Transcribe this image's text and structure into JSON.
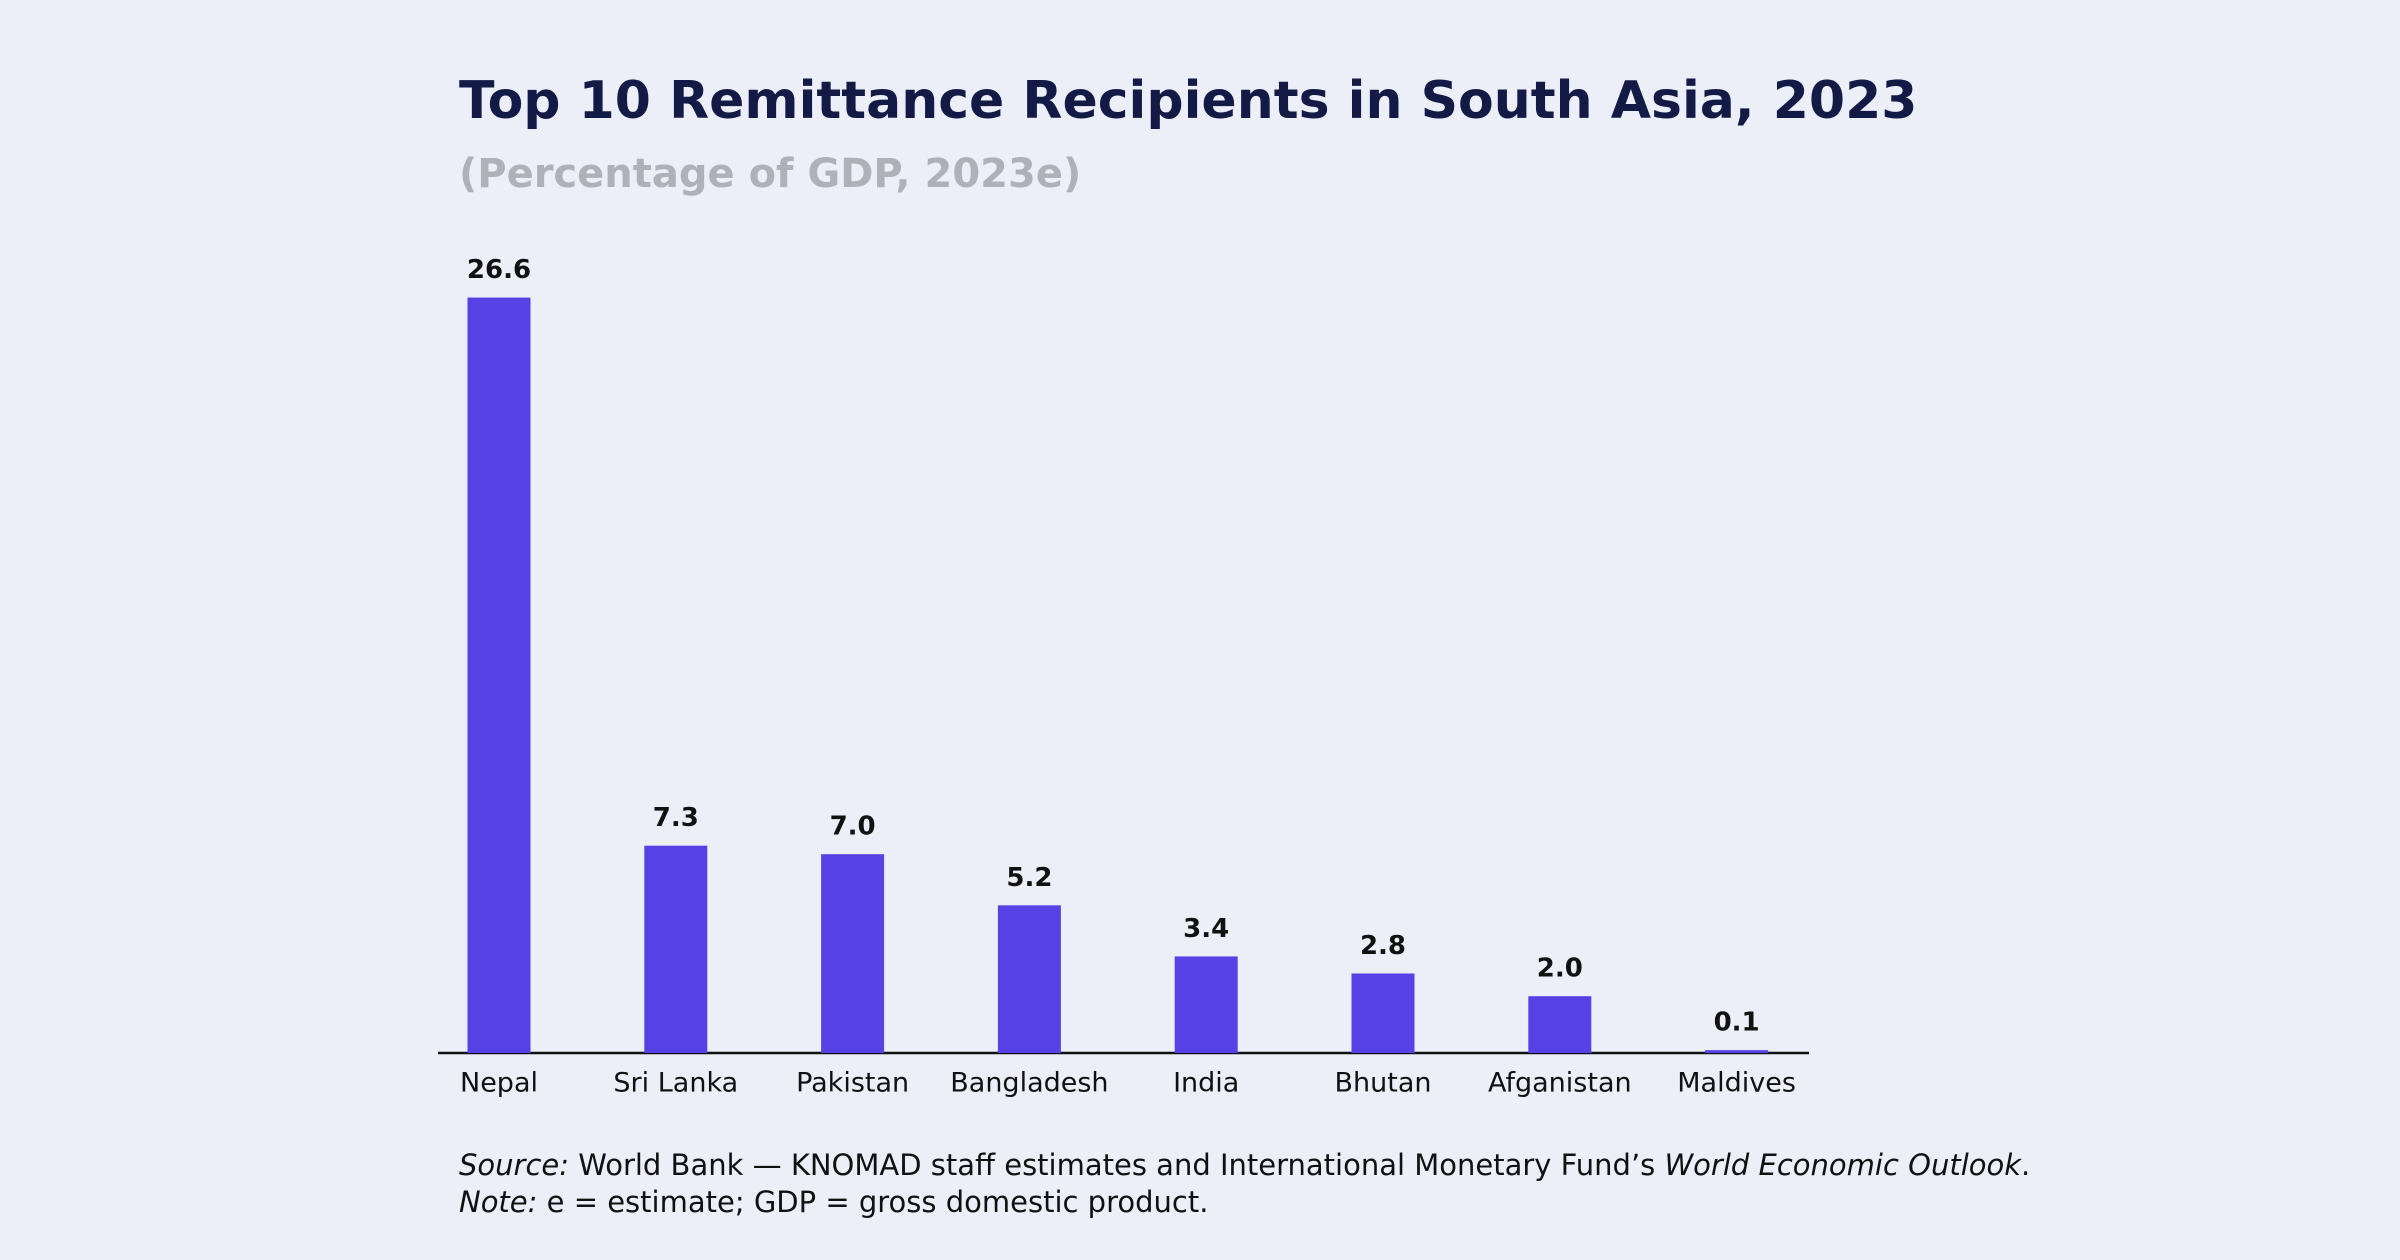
{
  "chart_data": {
    "type": "bar",
    "title": "Top 10 Remittance Recipients in South Asia, 2023",
    "subtitle": "(Percentage of GDP, 2023e)",
    "categories": [
      "Nepal",
      "Sri Lanka",
      "Pakistan",
      "Bangladesh",
      "India",
      "Bhutan",
      "Afganistan",
      "Maldives"
    ],
    "values": [
      26.6,
      7.3,
      7.0,
      5.2,
      3.4,
      2.8,
      2.0,
      0.1
    ],
    "value_labels": [
      "26.6",
      "7.3",
      "7.0",
      "5.2",
      "3.4",
      "2.8",
      "2.0",
      "0.1"
    ],
    "color": "#5641e5",
    "source": {
      "label": "Source:",
      "text": "World Bank — KNOMAD staff estimates and International Monetary Fund’s",
      "publication": "World Economic Outlook",
      "end": "."
    },
    "note": {
      "label": "Note:",
      "text": "e = estimate; GDP = gross domestic product."
    }
  }
}
